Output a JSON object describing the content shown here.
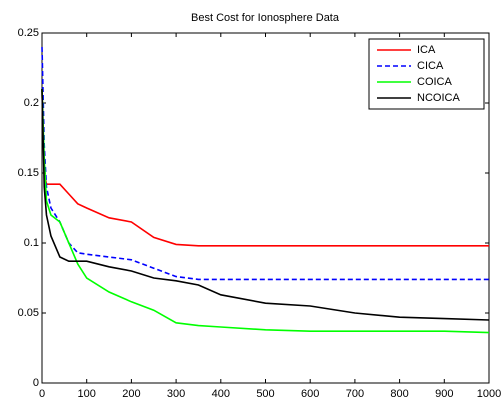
{
  "chart_data": {
    "type": "line",
    "title": "Best Cost for Ionosphere Data",
    "x": [
      0,
      5,
      10,
      20,
      40,
      60,
      80,
      100,
      150,
      200,
      250,
      300,
      350,
      400,
      500,
      600,
      700,
      800,
      900,
      1000
    ],
    "series": [
      {
        "name": "ICA",
        "color": "#ff0000",
        "linestyle": "solid",
        "values": [
          0.21,
          0.15,
          0.142,
          0.142,
          0.142,
          0.135,
          0.128,
          0.125,
          0.118,
          0.115,
          0.104,
          0.099,
          0.098,
          0.098,
          0.098,
          0.098,
          0.098,
          0.098,
          0.098,
          0.098
        ]
      },
      {
        "name": "CICA",
        "color": "#0000ff",
        "linestyle": "dash",
        "values": [
          0.24,
          0.17,
          0.14,
          0.125,
          0.115,
          0.1,
          0.093,
          0.092,
          0.09,
          0.088,
          0.082,
          0.076,
          0.074,
          0.074,
          0.074,
          0.074,
          0.074,
          0.074,
          0.074,
          0.074
        ]
      },
      {
        "name": "COICA",
        "color": "#00ff00",
        "linestyle": "solid",
        "values": [
          0.21,
          0.16,
          0.13,
          0.12,
          0.115,
          0.1,
          0.085,
          0.075,
          0.065,
          0.058,
          0.052,
          0.043,
          0.041,
          0.04,
          0.038,
          0.037,
          0.037,
          0.037,
          0.037,
          0.036
        ]
      },
      {
        "name": "NCOICA",
        "color": "#000000",
        "linestyle": "solid",
        "values": [
          0.21,
          0.14,
          0.12,
          0.105,
          0.09,
          0.087,
          0.087,
          0.087,
          0.083,
          0.08,
          0.075,
          0.073,
          0.07,
          0.063,
          0.057,
          0.055,
          0.05,
          0.047,
          0.046,
          0.045
        ]
      }
    ],
    "xlim": [
      0,
      1000
    ],
    "xticks": [
      0,
      100,
      200,
      300,
      400,
      500,
      600,
      700,
      800,
      900,
      1000
    ],
    "ylim": [
      0,
      0.25
    ],
    "yticks": [
      0,
      0.05,
      0.1,
      0.15,
      0.2,
      0.25
    ],
    "legend": "top-right"
  }
}
